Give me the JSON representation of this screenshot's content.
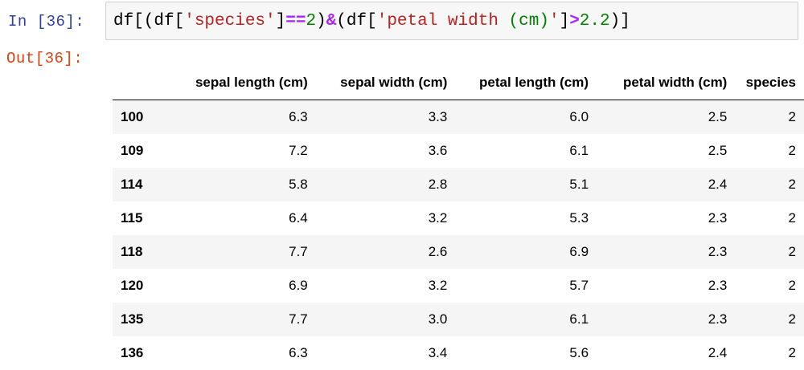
{
  "input_prompt": "In [36]:",
  "output_prompt": "Out[36]:",
  "code_tokens": [
    {
      "t": "df[(df[",
      "c": "plain"
    },
    {
      "t": "'species'",
      "c": "str"
    },
    {
      "t": "]",
      "c": "plain"
    },
    {
      "t": "==",
      "c": "op"
    },
    {
      "t": "2",
      "c": "num"
    },
    {
      "t": ")",
      "c": "plain"
    },
    {
      "t": "&",
      "c": "op"
    },
    {
      "t": "(df[",
      "c": "plain"
    },
    {
      "t": "'petal width ",
      "c": "str"
    },
    {
      "t": "(cm)",
      "c": "num"
    },
    {
      "t": "'",
      "c": "str"
    },
    {
      "t": "]",
      "c": "plain"
    },
    {
      "t": ">",
      "c": "op"
    },
    {
      "t": "2.2",
      "c": "num"
    },
    {
      "t": ")]",
      "c": "plain"
    }
  ],
  "table": {
    "columns": [
      "",
      "sepal length (cm)",
      "sepal width (cm)",
      "petal length (cm)",
      "petal width (cm)",
      "species"
    ],
    "rows": [
      [
        "100",
        "6.3",
        "3.3",
        "6.0",
        "2.5",
        "2"
      ],
      [
        "109",
        "7.2",
        "3.6",
        "6.1",
        "2.5",
        "2"
      ],
      [
        "114",
        "5.8",
        "2.8",
        "5.1",
        "2.4",
        "2"
      ],
      [
        "115",
        "6.4",
        "3.2",
        "5.3",
        "2.3",
        "2"
      ],
      [
        "118",
        "7.7",
        "2.6",
        "6.9",
        "2.3",
        "2"
      ],
      [
        "120",
        "6.9",
        "3.2",
        "5.7",
        "2.3",
        "2"
      ],
      [
        "135",
        "7.7",
        "3.0",
        "6.1",
        "2.3",
        "2"
      ],
      [
        "136",
        "6.3",
        "3.4",
        "5.6",
        "2.4",
        "2"
      ]
    ]
  },
  "colors": {
    "input_prompt": "#303f9f",
    "output_prompt": "#d84315",
    "string": "#ba2121",
    "operator": "#aa22ff",
    "number": "#008000",
    "cell_bg": "#f7f7f7"
  }
}
